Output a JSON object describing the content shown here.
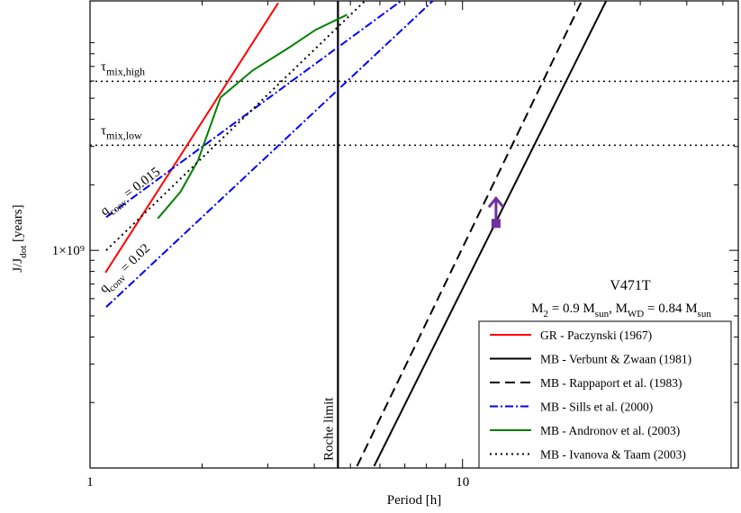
{
  "chart_data": {
    "type": "line",
    "x_label": "Period [h]",
    "y_label": {
      "text": "J/J",
      "sub": "dot",
      "rest": " [years]"
    },
    "log_x": true,
    "log_y": true,
    "xlim": [
      1,
      55
    ],
    "ylim": [
      100000000,
      14000000000
    ],
    "xticks": [
      1,
      10
    ],
    "yticks": [
      {
        "value": 1000000000,
        "label": "1×10⁹"
      }
    ],
    "x_minor_ticks": [
      2,
      3,
      4,
      5,
      6,
      7,
      8,
      9,
      20,
      30,
      40,
      50
    ],
    "y_minor_ticks": [
      200000000,
      300000000,
      400000000,
      500000000,
      600000000,
      700000000,
      800000000,
      900000000,
      2000000000,
      3000000000,
      4000000000,
      5000000000,
      6000000000,
      7000000000,
      8000000000,
      9000000000
    ],
    "series": [
      {
        "name": "GR - Paczynski (1967)",
        "color": "#ff0000",
        "dash": "solid",
        "x": [
          1.1,
          3.2
        ],
        "values": [
          790000000,
          13700000000
        ]
      },
      {
        "name": "MB - Verbunt & Zwaan (1981)",
        "color": "#000000",
        "dash": "solid",
        "x": [
          5.79,
          24.3
        ],
        "values": [
          102000000,
          14000000000
        ]
      },
      {
        "name": "MB - Rappaport et al. (1983)",
        "color": "#000000",
        "dash": "dashed",
        "x": [
          5.21,
          20.9
        ],
        "values": [
          102000000,
          14000000000
        ]
      },
      {
        "name": "MB - Sills et al. (2000)",
        "color": "#0000ff",
        "dash": "dashdot",
        "x": [
          1.105,
          6.84,
          null,
          1.105,
          8.32
        ],
        "values": [
          1420000000,
          14000000000,
          null,
          549000000,
          14000000000
        ]
      },
      {
        "name": "MB - Andronov et al. (2003)",
        "color": "#008000",
        "dash": "solid",
        "x": [
          1.52,
          1.75,
          1.95,
          2.24,
          2.73,
          3.41,
          4.03,
          4.9
        ],
        "values": [
          1400000000,
          1860000000,
          2590000000,
          5040000000,
          6700000000,
          8510000000,
          10300000000,
          12100000000
        ]
      },
      {
        "name": "MB - Ivanova & Taam (2003)",
        "color": "#000000",
        "dash": "dotted",
        "x": [
          1.105,
          5.47
        ],
        "values": [
          1000000000,
          14000000000
        ]
      }
    ],
    "reference_lines": [
      {
        "orientation": "horizontal",
        "value": 5980000000,
        "label": "τ",
        "label_sub": "mix,high"
      },
      {
        "orientation": "horizontal",
        "value": 3040000000,
        "label": "τ",
        "label_sub": "mix,low"
      },
      {
        "orientation": "vertical",
        "value": 4.63,
        "label": "Roche limit"
      }
    ],
    "annotations": [
      {
        "text": "q",
        "sub": "conv",
        "rest": " = 0.015"
      },
      {
        "text": "q",
        "sub": "conv",
        "rest": " = 0.02"
      }
    ],
    "object": "V471T",
    "parameters": [
      {
        "text": "M"
      },
      {
        "text": "2",
        "sub": true
      },
      {
        "text": " = 0.9 M"
      },
      {
        "text": "sun",
        "sub": true
      },
      {
        "text": ", M"
      },
      {
        "text": "WD",
        "sub": true
      },
      {
        "text": " = 0.84 M"
      },
      {
        "text": "sun",
        "sub": true
      }
    ],
    "measurement": {
      "x": 12.3,
      "value": 1330000000,
      "color": "#7030a0",
      "limit": "lower"
    },
    "legend": "lower right"
  }
}
